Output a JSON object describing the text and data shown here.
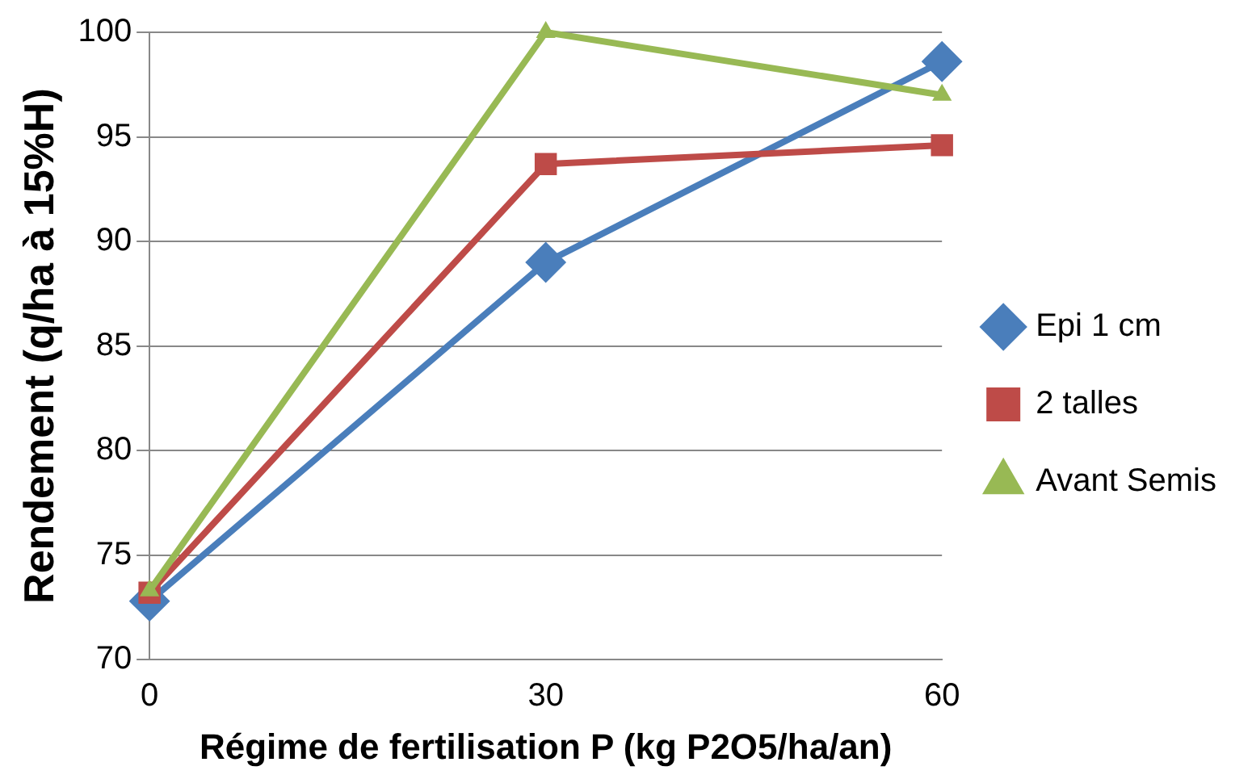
{
  "chart_data": {
    "type": "line",
    "xlabel": "Régime de fertilisation P (kg P2O5/ha/an)",
    "ylabel": "Rendement (q/ha à 15%H)",
    "x": [
      0,
      30,
      60
    ],
    "series": [
      {
        "name": "Epi 1 cm",
        "color": "#4a7ebb",
        "marker": "diamond",
        "values": [
          72.8,
          89.0,
          98.6
        ]
      },
      {
        "name": "2 talles",
        "color": "#be4b48",
        "marker": "square",
        "values": [
          73.2,
          93.7,
          94.6
        ]
      },
      {
        "name": "Avant Semis",
        "color": "#98b954",
        "marker": "triangle",
        "values": [
          73.3,
          100,
          97.0
        ]
      }
    ],
    "xlim": [
      0,
      60
    ],
    "xticks": [
      0,
      30,
      60
    ],
    "ylim": [
      70,
      100
    ],
    "yticks": [
      70,
      75,
      80,
      85,
      90,
      95,
      100
    ],
    "grid": "y",
    "legend": "right",
    "line_style": "solid"
  }
}
